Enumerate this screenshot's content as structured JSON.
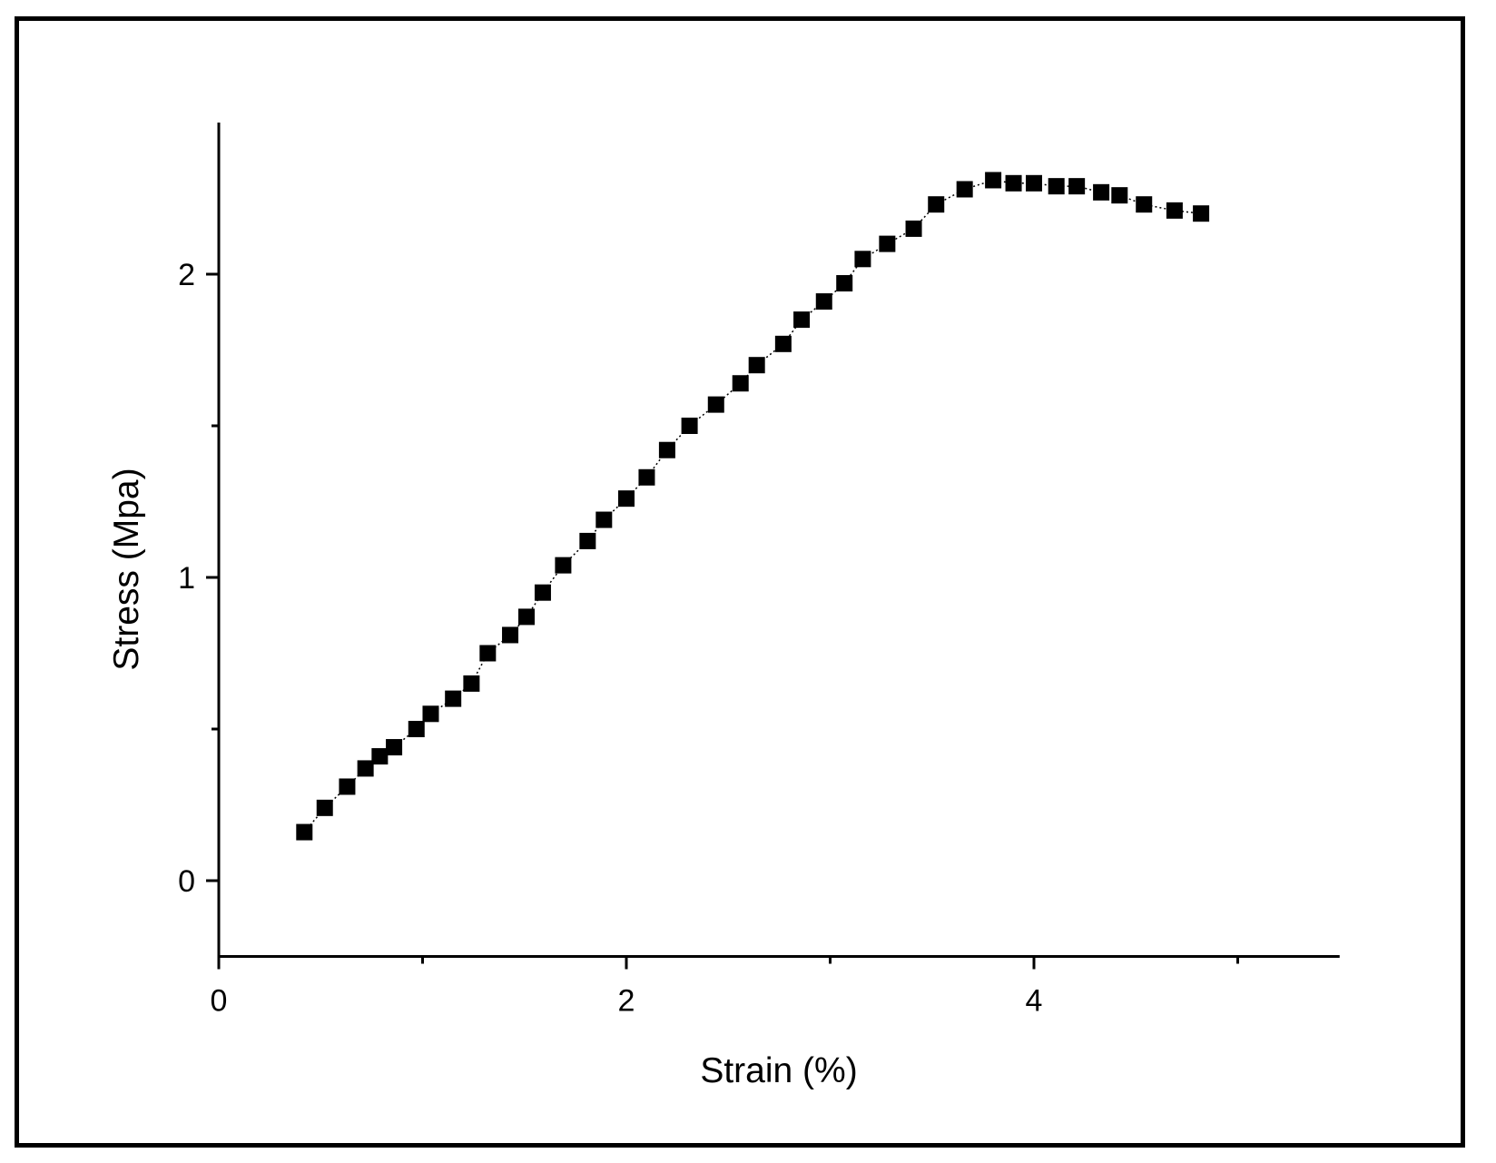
{
  "chart_data": {
    "type": "scatter",
    "title": "",
    "xlabel": "Strain (%)",
    "ylabel": "Stress (Mpa)",
    "xlim": [
      0,
      5.5
    ],
    "ylim": [
      -0.25,
      2.5
    ],
    "xticks": [
      0,
      2,
      4
    ],
    "xticks_minor": [
      1,
      3,
      5
    ],
    "yticks": [
      0,
      1,
      2
    ],
    "yticks_minor": [
      0.5,
      1.5
    ],
    "grid": false,
    "legend": "none",
    "marker": "square",
    "connector": "dotted line",
    "marker_color": "#000000",
    "series": [
      {
        "x": [
          0.42,
          0.52,
          0.63,
          0.72,
          0.79,
          0.86,
          0.97,
          1.04,
          1.15,
          1.24,
          1.32,
          1.43,
          1.51,
          1.59,
          1.69,
          1.81,
          1.89,
          2.0,
          2.1,
          2.2,
          2.31,
          2.44,
          2.56,
          2.64,
          2.77,
          2.86,
          2.97,
          3.07,
          3.16,
          3.28,
          3.41,
          3.52,
          3.66,
          3.8,
          3.9,
          4.0,
          4.11,
          4.21,
          4.33,
          4.42,
          4.54,
          4.69,
          4.82
        ],
        "y": [
          0.16,
          0.24,
          0.31,
          0.37,
          0.41,
          0.44,
          0.5,
          0.55,
          0.6,
          0.65,
          0.75,
          0.81,
          0.87,
          0.95,
          1.04,
          1.12,
          1.19,
          1.26,
          1.33,
          1.42,
          1.5,
          1.57,
          1.64,
          1.7,
          1.77,
          1.85,
          1.91,
          1.97,
          2.05,
          2.1,
          2.15,
          2.23,
          2.28,
          2.31,
          2.3,
          2.3,
          2.29,
          2.29,
          2.27,
          2.26,
          2.23,
          2.21,
          2.2
        ]
      }
    ]
  }
}
